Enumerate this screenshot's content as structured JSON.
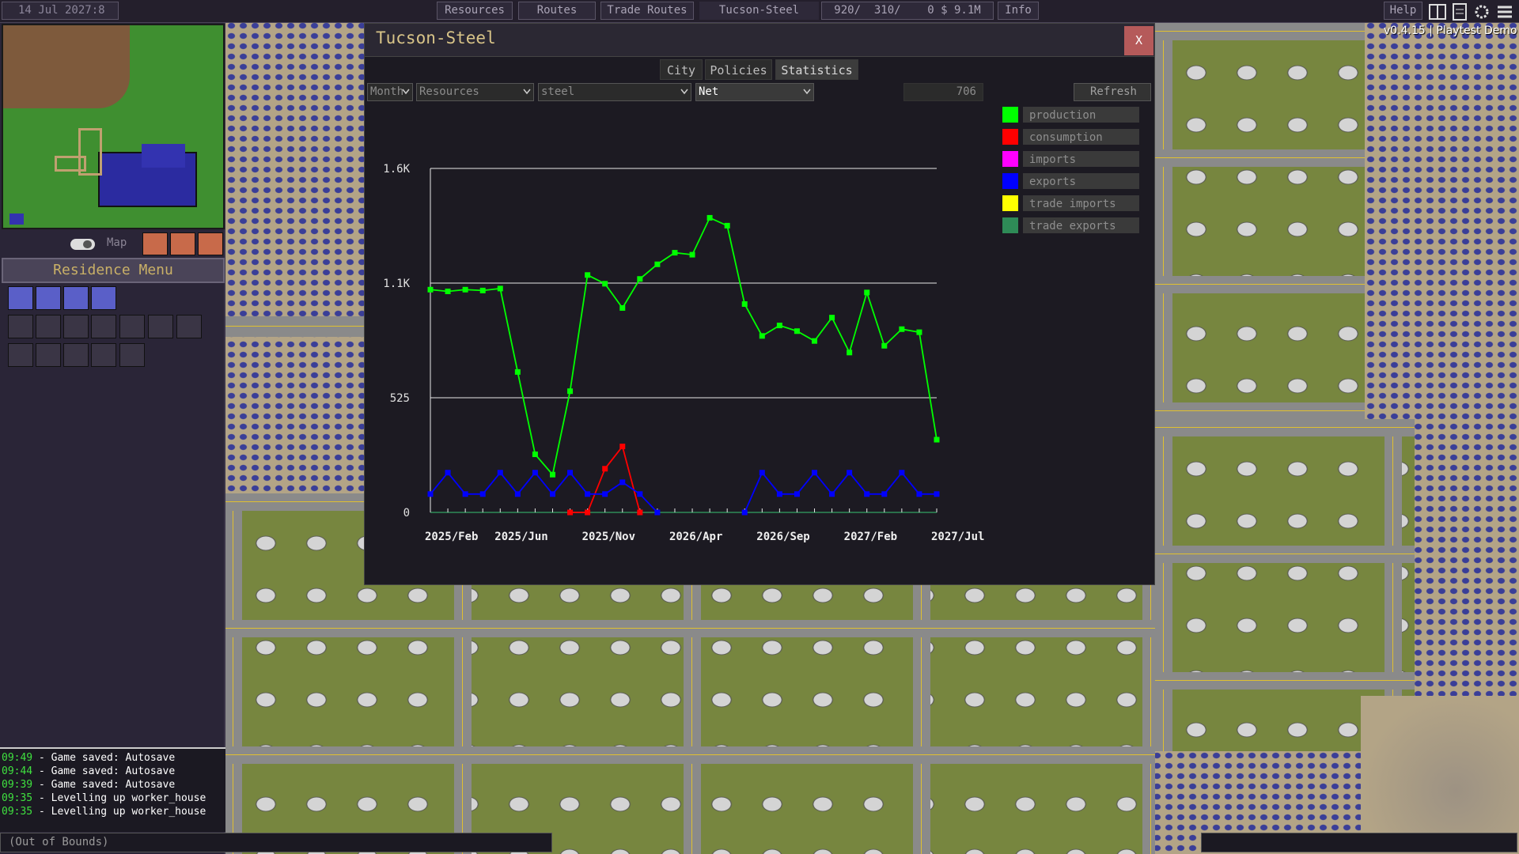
{
  "top_bar": {
    "date": "14 Jul 2027:8",
    "buttons": [
      "Resources",
      "Routes",
      "Trade Routes",
      "Tucson-Steel",
      "920/  310/    0 $ 9.1M",
      "Info"
    ],
    "help": "Help",
    "version": "v0.4.15 | Playtest Demo"
  },
  "left_panel": {
    "map_button": "Map",
    "menu_title": "Residence Menu",
    "log": [
      {
        "time": "09:49",
        "text": " - Game saved: Autosave"
      },
      {
        "time": "09:44",
        "text": " - Game saved: Autosave"
      },
      {
        "time": "09:39",
        "text": " - Game saved: Autosave"
      },
      {
        "time": "09:35",
        "text": " - Levelling up worker_house"
      },
      {
        "time": "09:35",
        "text": " - Levelling up worker_house"
      }
    ],
    "status": "(Out of Bounds)"
  },
  "window": {
    "title": "Tucson-Steel",
    "close": "X",
    "tabs": [
      "City",
      "Policies",
      "Statistics"
    ],
    "filters": [
      "Month",
      "Resources",
      "steel",
      "Net"
    ],
    "value": "706",
    "refresh": "Refresh"
  },
  "chart_data": {
    "type": "line",
    "categories": [
      "2025/Feb",
      null,
      null,
      null,
      "2025/Jun",
      null,
      null,
      null,
      null,
      "2025/Nov",
      null,
      null,
      null,
      null,
      "2026/Apr",
      null,
      null,
      null,
      null,
      "2026/Sep",
      null,
      null,
      null,
      null,
      "2027/Feb",
      null,
      null,
      null,
      null,
      "2027/Jul"
    ],
    "ylim": [
      0,
      1575
    ],
    "yticks": [
      0,
      525,
      {
        "value": 1050,
        "label": "1.1K"
      },
      {
        "value": 1575,
        "label": "1.6K"
      }
    ],
    "grid": true,
    "legend": "right",
    "series": [
      {
        "name": "production",
        "color": "#00ff00",
        "values": [
          1020,
          1012,
          1020,
          1016,
          1025,
          643,
          266,
          173,
          555,
          1087,
          1047,
          936,
          1069,
          1136,
          1189,
          1180,
          1349,
          1313,
          954,
          808,
          856,
          830,
          785,
          892,
          732,
          1007,
          763,
          839,
          825,
          333
        ]
      },
      {
        "name": "consumption",
        "color": "#ff0000",
        "values": [
          null,
          null,
          null,
          null,
          null,
          null,
          null,
          null,
          0,
          0,
          200,
          302,
          0,
          null,
          null,
          null,
          null,
          null,
          null,
          null,
          null,
          null,
          null,
          null,
          null,
          null,
          null,
          null,
          null,
          null
        ]
      },
      {
        "name": "imports",
        "color": "#ff00ff",
        "values": [
          null,
          null,
          null,
          null,
          null,
          null,
          null,
          null,
          null,
          null,
          null,
          null,
          null,
          null,
          null,
          null,
          null,
          null,
          null,
          null,
          null,
          null,
          null,
          null,
          null,
          null,
          null,
          null,
          null,
          null
        ]
      },
      {
        "name": "exports",
        "color": "#0000ff",
        "values": [
          84,
          182,
          84,
          84,
          182,
          84,
          182,
          84,
          182,
          84,
          84,
          138,
          84,
          0,
          null,
          null,
          null,
          null,
          0,
          182,
          84,
          84,
          182,
          84,
          182,
          84,
          84,
          182,
          84,
          84
        ]
      },
      {
        "name": "trade imports",
        "color": "#ffff00",
        "values": [
          null,
          null,
          null,
          null,
          null,
          null,
          null,
          null,
          null,
          null,
          null,
          null,
          null,
          null,
          null,
          null,
          null,
          null,
          null,
          null,
          null,
          null,
          null,
          null,
          null,
          null,
          null,
          null,
          null,
          null
        ]
      },
      {
        "name": "trade exports",
        "color": "#2e8b57",
        "values": [
          null,
          null,
          null,
          null,
          null,
          null,
          null,
          null,
          null,
          null,
          null,
          null,
          null,
          null,
          null,
          null,
          null,
          null,
          null,
          null,
          null,
          null,
          null,
          null,
          null,
          null,
          null,
          null,
          null,
          null
        ]
      }
    ]
  }
}
